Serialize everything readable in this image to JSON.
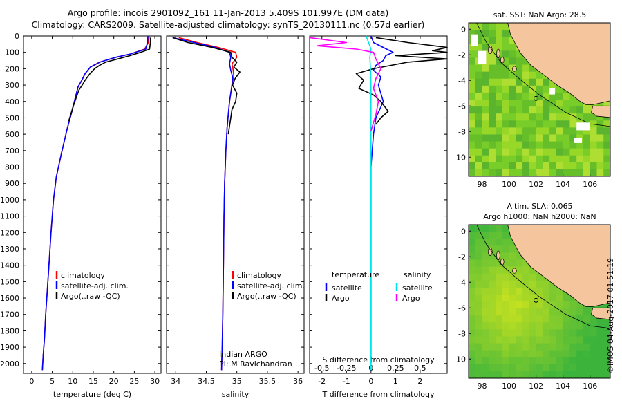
{
  "header": {
    "line1": "Argo profile: incois 2901092_161 11-Jan-2013 5.409S 101.997E (DM data)",
    "line2": "Climatology: CARS2009. Satellite-adjusted climatology: synTS_20130111.nc (0.57d earlier)"
  },
  "colors": {
    "climatology": "#ff0000",
    "satellite": "#0000ff",
    "argo": "#000000",
    "sal_satellite": "#00e5e5",
    "sal_argo": "#ff00ff",
    "land": "#f5c59e"
  },
  "depth_axis": {
    "ticks": [
      0,
      100,
      200,
      300,
      400,
      500,
      600,
      700,
      800,
      900,
      1000,
      1100,
      1200,
      1300,
      1400,
      1500,
      1600,
      1700,
      1800,
      1900,
      2000
    ],
    "range": [
      0,
      2060
    ]
  },
  "chart_data": [
    {
      "type": "line",
      "title": "",
      "xlabel": "temperature (deg C)",
      "ylabel": "",
      "xlim": [
        -2,
        31.5
      ],
      "ylim": [
        2060,
        0
      ],
      "xticks": [
        "0",
        "5",
        "10",
        "15",
        "20",
        "25",
        "30"
      ],
      "xtick_values": [
        0,
        5,
        10,
        15,
        20,
        25,
        30
      ],
      "legend": {
        "position": "lower-center",
        "entries": [
          "climatology",
          "satellite-adj. clim.",
          "Argo(..raw -QC)"
        ]
      },
      "series": [
        {
          "name": "climatology",
          "color": "#ff0000",
          "x": [
            28.6,
            28.4,
            27.5,
            24,
            20.5,
            16.5,
            14.3,
            13.0,
            12.2,
            11.3,
            10.6,
            9.8,
            8.7,
            7.2,
            6.0,
            5.3,
            4.7,
            4.2,
            3.8,
            3.4,
            3.1,
            2.8,
            2.6
          ],
          "y": [
            0,
            40,
            80,
            110,
            130,
            160,
            190,
            230,
            270,
            310,
            380,
            460,
            560,
            720,
            860,
            1000,
            1200,
            1400,
            1550,
            1700,
            1850,
            1950,
            2040
          ]
        },
        {
          "name": "satellite-adj. clim.",
          "color": "#0000ff",
          "x": [
            28.3,
            28.2,
            27.8,
            24,
            20.5,
            16.6,
            14.3,
            13.0,
            12.2,
            11.3,
            10.6,
            9.8,
            8.7,
            7.2,
            6.0,
            5.3,
            4.7,
            4.2,
            3.8,
            3.4,
            3.1,
            2.8,
            2.6
          ],
          "y": [
            0,
            40,
            80,
            110,
            130,
            160,
            190,
            230,
            270,
            310,
            380,
            460,
            560,
            720,
            860,
            1000,
            1200,
            1400,
            1550,
            1700,
            1850,
            1950,
            2040
          ]
        },
        {
          "name": "Argo(..raw -QC)",
          "color": "#000000",
          "x": [
            28.9,
            28.9,
            28.7,
            26.5,
            24,
            21,
            18,
            16.5,
            15.3,
            14.2,
            13,
            12.3,
            11.5,
            10.8,
            10.1,
            9.5,
            9.0
          ],
          "y": [
            10,
            40,
            80,
            100,
            120,
            140,
            160,
            180,
            200,
            230,
            270,
            300,
            330,
            380,
            430,
            480,
            520
          ]
        }
      ]
    },
    {
      "type": "line",
      "title": "",
      "xlabel": "salinity",
      "ylabel": "",
      "xlim": [
        33.85,
        36.1
      ],
      "ylim": [
        2060,
        0
      ],
      "xticks": [
        "34",
        "34.5",
        "35",
        "35.5",
        "36"
      ],
      "xtick_values": [
        34,
        34.5,
        35,
        35.5,
        36
      ],
      "legend": {
        "position": "lower-center",
        "entries": [
          "climatology",
          "satellite-adj. clim.",
          "Argo(..raw -QC)"
        ]
      },
      "annotations": [
        "Indian ARGO",
        "PI: M Ravichandran"
      ],
      "series": [
        {
          "name": "climatology",
          "color": "#ff0000",
          "x": [
            34.05,
            34.35,
            34.7,
            34.98,
            35.0,
            34.92,
            34.94,
            34.95,
            34.92,
            34.9,
            34.88,
            34.86,
            34.84,
            34.82,
            34.8,
            34.79,
            34.78,
            34.77,
            34.76,
            34.75
          ],
          "y": [
            10,
            40,
            70,
            100,
            130,
            170,
            210,
            250,
            300,
            350,
            400,
            480,
            560,
            700,
            900,
            1100,
            1400,
            1700,
            1900,
            2040
          ]
        },
        {
          "name": "satellite-adj. clim.",
          "color": "#0000ff",
          "x": [
            33.95,
            34.3,
            34.65,
            34.88,
            34.9,
            34.88,
            34.9,
            34.93,
            34.92,
            34.9,
            34.88,
            34.86,
            34.84,
            34.82,
            34.8,
            34.79,
            34.78,
            34.77,
            34.76,
            34.75
          ],
          "y": [
            10,
            40,
            70,
            100,
            130,
            170,
            210,
            250,
            300,
            350,
            400,
            480,
            560,
            700,
            900,
            1100,
            1400,
            1700,
            1900,
            2040
          ]
        },
        {
          "name": "Argo(..raw -QC)",
          "color": "#000000",
          "x": [
            33.95,
            34.2,
            34.6,
            34.9,
            34.92,
            35.0,
            34.95,
            35.05,
            34.97,
            34.93,
            35.0,
            34.98,
            34.92,
            34.9,
            34.88,
            34.86
          ],
          "y": [
            10,
            40,
            70,
            100,
            130,
            160,
            190,
            220,
            260,
            300,
            350,
            400,
            450,
            500,
            550,
            600
          ]
        }
      ]
    },
    {
      "type": "line",
      "title": "",
      "xlabel": "T difference from climatology",
      "xlabel2": "S difference from climatology",
      "ylabel": "",
      "xlim": [
        -2.5,
        3.1
      ],
      "ylim": [
        2060,
        0
      ],
      "xticks": [
        "-2",
        "-1",
        "0",
        "1",
        "2"
      ],
      "xtick_values": [
        -2,
        -1,
        0,
        1,
        2
      ],
      "xticks2": [
        "-0.5",
        "-0.25",
        "0",
        "0.25",
        "0.5"
      ],
      "xtick2_values": [
        -0.5,
        -0.25,
        0,
        0.25,
        0.5
      ],
      "legend": {
        "position": "lower-center",
        "headers": [
          "temperature",
          "salinity"
        ],
        "entries": [
          "satellite",
          "Argo",
          "satellite",
          "Argo"
        ]
      },
      "series": [
        {
          "name": "temperature satellite",
          "color": "#0000ff",
          "x": [
            0,
            0.1,
            0.5,
            0.9,
            0.6,
            0.5,
            0.2,
            0.1,
            0.4,
            0.3,
            0.5,
            0.2,
            0.1,
            0,
            0,
            0
          ],
          "y": [
            0,
            40,
            70,
            100,
            120,
            150,
            180,
            210,
            250,
            300,
            400,
            500,
            600,
            800,
            1200,
            2040
          ]
        },
        {
          "name": "temperature Argo",
          "color": "#000000",
          "x": [
            0.2,
            1.5,
            3.1,
            2.5,
            3.1,
            1.0,
            3.1,
            1.5,
            0.8,
            0.1,
            -0.6,
            -0.3,
            -0.5,
            0.1,
            0.4,
            0.7,
            0.4,
            0.2
          ],
          "y": [
            10,
            40,
            70,
            90,
            100,
            120,
            140,
            160,
            180,
            200,
            230,
            270,
            320,
            360,
            400,
            460,
            500,
            540
          ]
        },
        {
          "name": "salinity satellite",
          "color": "#00e5e5",
          "x": [
            -0.2,
            -0.1,
            0,
            -0.05,
            -0.02,
            0,
            0,
            0,
            0,
            0,
            0
          ],
          "y": [
            0,
            40,
            80,
            130,
            200,
            300,
            500,
            800,
            1200,
            1600,
            2040
          ]
        },
        {
          "name": "salinity Argo",
          "color": "#ff00ff",
          "x": [
            -2.5,
            -1.0,
            -2.2,
            -0.6,
            0.1,
            0.2,
            0.4,
            0.2,
            0.1,
            0.3,
            0.2,
            0.0
          ],
          "y": [
            10,
            40,
            60,
            80,
            100,
            140,
            200,
            260,
            320,
            400,
            480,
            580
          ]
        }
      ]
    }
  ],
  "map_sst": {
    "title": "sat. SST: NaN Argo: 28.5",
    "xticks": [
      "98",
      "100",
      "102",
      "104",
      "106"
    ],
    "yticks": [
      "0",
      "-2",
      "-4",
      "-6",
      "-8",
      "-10"
    ],
    "lon_range": [
      97,
      107.5
    ],
    "lat_range": [
      -11.5,
      0.5
    ]
  },
  "map_sla": {
    "title1": "Altim. SLA: 0.065",
    "title2": "Argo h1000: NaN h2000: NaN",
    "xticks": [
      "98",
      "100",
      "102",
      "104",
      "106"
    ],
    "yticks": [
      "0",
      "-2",
      "-4",
      "-6",
      "-8",
      "-10"
    ],
    "lon_range": [
      97,
      107.5
    ],
    "lat_range": [
      -11.5,
      0.5
    ]
  },
  "stamp": "©IMOS 04-Aug-2017 01:51:19"
}
